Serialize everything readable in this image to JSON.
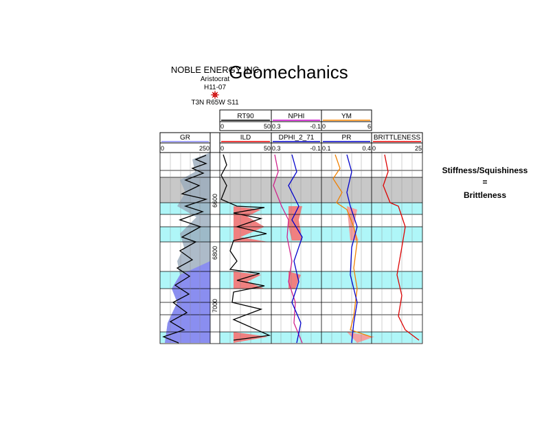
{
  "header": {
    "company": "NOBLE ENERGY INC",
    "lease": "Aristocrat",
    "well": "H11-07",
    "location": "T3N R65W S11"
  },
  "title": "Geomechanics",
  "top_tracks": [
    {
      "name": "RT90",
      "min": "0",
      "max": "50"
    },
    {
      "name": "NPHI",
      "min": "0.3",
      "max": "-0.1"
    },
    {
      "name": "YM",
      "min": "0",
      "max": "6"
    }
  ],
  "tracks": [
    {
      "name": "GR",
      "min": "0",
      "max": "250"
    },
    {
      "name": "ILD",
      "min": "0",
      "max": "50"
    },
    {
      "name": "DPHI_2_71",
      "min": "0.3",
      "max": "-0.1"
    },
    {
      "name": "PR",
      "min": "0.1",
      "max": "0.4"
    },
    {
      "name": "BRITTLENESS",
      "min": "0",
      "max": "25"
    }
  ],
  "depths": [
    "6600",
    "6800",
    "7000"
  ],
  "note": [
    "Stiffness/Squishiness",
    "=",
    "Brittleness"
  ]
}
